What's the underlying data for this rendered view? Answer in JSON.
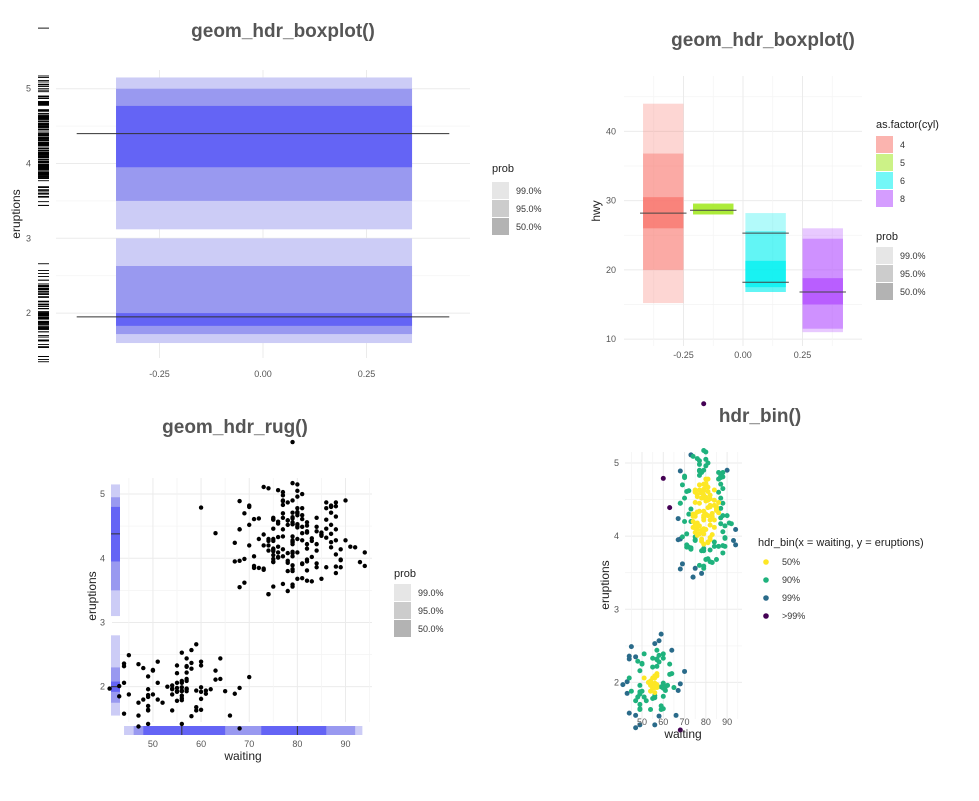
{
  "chart_data": [
    {
      "id": "p1",
      "type": "boxplot",
      "title": "geom_hdr_boxplot()",
      "xlabel": "",
      "ylabel": "eruptions",
      "xlim": [
        -0.5,
        0.5
      ],
      "ylim": [
        1.4,
        5.25
      ],
      "x_ticks": [
        -0.25,
        0.0,
        0.25
      ],
      "x_tick_labels": [
        "-0.25",
        "0.00",
        "0.25"
      ],
      "y_ticks": [
        2,
        3,
        4,
        5
      ],
      "y_tick_labels": [
        "2",
        "3",
        "4",
        "5"
      ],
      "box_x": [
        -0.355,
        0.36
      ],
      "regions": [
        {
          "prob": "99.0%",
          "color": "#ccccf6",
          "intervals": [
            [
              3.12,
              5.15
            ],
            [
              1.6,
              3.0
            ]
          ]
        },
        {
          "prob": "95.0%",
          "color": "#9999f0",
          "intervals": [
            [
              3.5,
              5.0
            ],
            [
              1.72,
              2.63
            ]
          ]
        },
        {
          "prob": "50.0%",
          "color": "#6464f5",
          "intervals": [
            [
              3.95,
              4.77
            ],
            [
              1.83,
              2.0
            ]
          ]
        }
      ],
      "modes": [
        4.4,
        1.95
      ],
      "rug_side": "left",
      "legend": {
        "title": "prob",
        "entries": [
          "99.0%",
          "95.0%",
          "50.0%"
        ],
        "colors": [
          "#e6e6e6",
          "#cccccc",
          "#b3b3b3"
        ],
        "position": "right"
      }
    },
    {
      "id": "p2",
      "type": "boxplot",
      "title": "geom_hdr_boxplot()",
      "xlabel": "",
      "ylabel": "hwy",
      "xlim": [
        -0.5,
        0.5
      ],
      "ylim": [
        9,
        48
      ],
      "x_ticks": [
        -0.25,
        0.0,
        0.25
      ],
      "x_tick_labels": [
        "-0.25",
        "0.00",
        "0.25"
      ],
      "y_ticks": [
        10,
        20,
        30,
        40
      ],
      "y_tick_labels": [
        "10",
        "20",
        "30",
        "40"
      ],
      "groups": [
        {
          "cyl": "4",
          "color": "#f8766d",
          "x": [
            -0.42,
            -0.25
          ],
          "r99": [
            15.2,
            44
          ],
          "r95": [
            20,
            36.8
          ],
          "r50": [
            26,
            30.5
          ],
          "modes": [
            28.2
          ]
        },
        {
          "cyl": "5",
          "color": "#a3e824",
          "x": [
            -0.21,
            -0.04
          ],
          "r99": [
            28,
            29.6
          ],
          "r95": [
            28,
            29.6
          ],
          "r50": [
            28,
            29.5
          ],
          "modes": [
            28.6
          ]
        },
        {
          "cyl": "6",
          "color": "#00f0f0",
          "x": [
            0.01,
            0.18
          ],
          "r99": [
            16.8,
            28.2
          ],
          "r95": [
            16.8,
            25.6
          ],
          "r50": [
            17.5,
            21.3
          ],
          "modes": [
            25.3,
            18.2
          ]
        },
        {
          "cyl": "8",
          "color": "#b24dff",
          "x": [
            0.25,
            0.42
          ],
          "r99": [
            11,
            26
          ],
          "r95": [
            11.5,
            24.5
          ],
          "r50": [
            15,
            18.8
          ],
          "modes": [
            16.8
          ]
        }
      ],
      "legend_groups": {
        "title": "as.factor(cyl)",
        "entries": [
          "4",
          "5",
          "6",
          "8"
        ],
        "colors": [
          "#f8766d",
          "#a3e824",
          "#00f0f0",
          "#b24dff"
        ],
        "position": "right"
      },
      "legend_prob": {
        "title": "prob",
        "entries": [
          "99.0%",
          "95.0%",
          "50.0%"
        ],
        "colors": [
          "#e6e6e6",
          "#cccccc",
          "#b3b3b3"
        ],
        "position": "right"
      }
    },
    {
      "id": "p3",
      "type": "scatter",
      "title": "geom_hdr_rug()",
      "xlabel": "waiting",
      "ylabel": "eruptions",
      "xlim": [
        41.5,
        95.5
      ],
      "ylim": [
        1.45,
        5.25
      ],
      "x_ticks": [
        50,
        60,
        70,
        80,
        90
      ],
      "x_tick_labels": [
        "50",
        "60",
        "70",
        "80",
        "90"
      ],
      "y_ticks": [
        2,
        3,
        4,
        5
      ],
      "y_tick_labels": [
        "2",
        "3",
        "4",
        "5"
      ],
      "rug_y": {
        "r99": [
          [
            1.55,
            2.8
          ],
          [
            3.1,
            5.15
          ]
        ],
        "r95": [
          [
            1.75,
            2.3
          ],
          [
            3.5,
            4.95
          ]
        ],
        "r50": [
          [
            1.92,
            2.08
          ],
          [
            3.95,
            4.8
          ]
        ],
        "modes": [
          4.38,
          2.0
        ]
      },
      "rug_x": {
        "r99": [
          [
            44,
            93.5
          ]
        ],
        "r95": [
          [
            46,
            92
          ]
        ],
        "r50": [
          [
            48,
            65
          ],
          [
            72.5,
            86
          ]
        ],
        "modes": [
          56,
          80
        ]
      },
      "legend": {
        "title": "prob",
        "entries": [
          "99.0%",
          "95.0%",
          "50.0%"
        ],
        "colors": [
          "#e6e6e6",
          "#cccccc",
          "#b3b3b3"
        ],
        "position": "right"
      }
    },
    {
      "id": "p4",
      "type": "scatter",
      "title": "hdr_bin()",
      "xlabel": "waiting",
      "ylabel": "eruptions",
      "xlim": [
        42,
        97
      ],
      "ylim": [
        1.5,
        5.15
      ],
      "x_ticks": [
        50,
        60,
        70,
        80,
        90
      ],
      "x_tick_labels": [
        "50",
        "60",
        "70",
        "80",
        "90"
      ],
      "y_ticks": [
        2,
        3,
        4,
        5
      ],
      "y_tick_labels": [
        "2",
        "3",
        "4",
        "5"
      ],
      "legend": {
        "title": "hdr_bin(x = waiting, y = eruptions)",
        "entries": [
          "50%",
          "90%",
          "99%",
          ">99%"
        ],
        "colors": [
          "#fde725",
          "#1fb27d",
          "#2a6b8a",
          "#440154"
        ],
        "position": "right"
      }
    }
  ]
}
